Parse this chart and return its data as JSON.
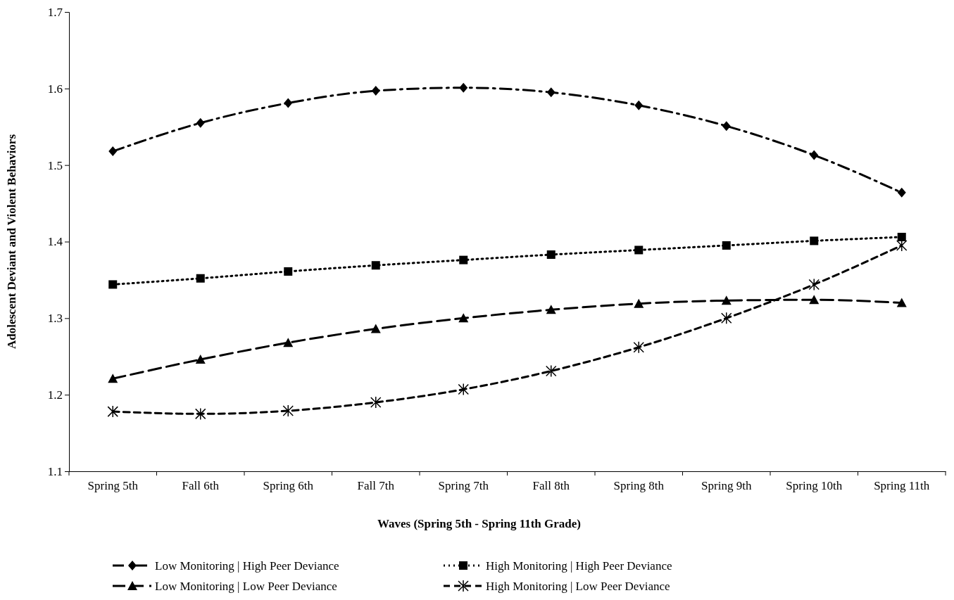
{
  "chart_data": {
    "type": "line",
    "xlabel": "Waves (Spring 5th - Spring 11th Grade)",
    "ylabel": "Adolescent Deviant and Violent Behaviors",
    "categories": [
      "Spring 5th",
      "Fall 6th",
      "Spring 6th",
      "Fall 7th",
      "Spring 7th",
      "Fall 8th",
      "Spring 8th",
      "Spring 9th",
      "Spring 10th",
      "Spring 11th"
    ],
    "ylim": [
      1.1,
      1.7
    ],
    "yticks": [
      1.1,
      1.2,
      1.3,
      1.4,
      1.5,
      1.6,
      1.7
    ],
    "grid": false,
    "legend": "bottom",
    "series": [
      {
        "name": "Low Monitoring | High Peer Deviance",
        "color": "#000000",
        "marker": "diamond",
        "line_style": "dashdot",
        "values": [
          1.518,
          1.555,
          1.581,
          1.597,
          1.601,
          1.595,
          1.578,
          1.551,
          1.513,
          1.464
        ]
      },
      {
        "name": "High Monitoring | High Peer Deviance",
        "color": "#000000",
        "marker": "square",
        "line_style": "dotted",
        "values": [
          1.344,
          1.352,
          1.361,
          1.369,
          1.376,
          1.383,
          1.389,
          1.395,
          1.401,
          1.406
        ]
      },
      {
        "name": "Low Monitoring | Low Peer Deviance",
        "color": "#000000",
        "marker": "triangle",
        "line_style": "longdash",
        "values": [
          1.221,
          1.246,
          1.268,
          1.286,
          1.3,
          1.311,
          1.319,
          1.323,
          1.324,
          1.32
        ]
      },
      {
        "name": "High Monitoring | Low Peer Deviance",
        "color": "#000000",
        "marker": "cross",
        "line_style": "dashed",
        "values": [
          1.178,
          1.175,
          1.179,
          1.19,
          1.207,
          1.231,
          1.262,
          1.3,
          1.344,
          1.395
        ]
      }
    ]
  }
}
